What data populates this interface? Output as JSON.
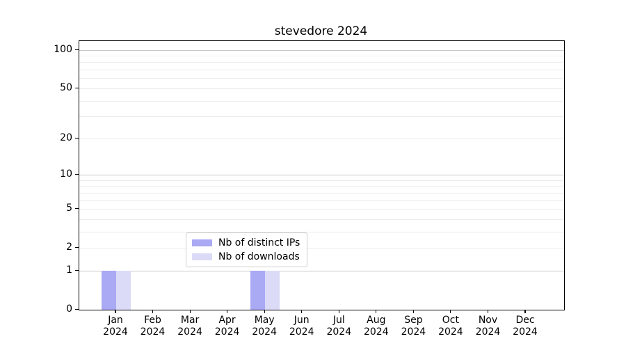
{
  "figure": {
    "background": "#ffffff"
  },
  "chart_data": {
    "type": "bar",
    "title": "stevedore 2024",
    "categories": [
      "Jan",
      "Feb",
      "Mar",
      "Apr",
      "May",
      "Jun",
      "Jul",
      "Aug",
      "Sep",
      "Oct",
      "Nov",
      "Dec"
    ],
    "xtick_year_label": "2024",
    "series": [
      {
        "name": "Nb of distinct IPs",
        "color": "#a9a9f4",
        "values": [
          1,
          0,
          0,
          0,
          1,
          0,
          0,
          0,
          0,
          0,
          0,
          0
        ]
      },
      {
        "name": "Nb of downloads",
        "color": "#dbdbf8",
        "values": [
          1,
          0,
          0,
          0,
          1,
          0,
          0,
          0,
          0,
          0,
          0,
          0
        ]
      }
    ],
    "yscale": "log1p",
    "ylim": [
      0,
      117
    ],
    "yticks_labeled": [
      0,
      1,
      2,
      5,
      10,
      20,
      50,
      100
    ],
    "ygrid_major": [
      1,
      10,
      100
    ],
    "ygrid_minor": [
      2,
      3,
      4,
      5,
      6,
      7,
      8,
      9,
      20,
      30,
      40,
      50,
      60,
      70,
      80,
      90
    ],
    "legend_position": "lower center-left, overlapping plot",
    "grid": true
  },
  "colors": {
    "grid_major": "#c8c8c8",
    "grid_minor": "#ebebeb",
    "spine": "#000000",
    "legend_border": "#cccccc"
  }
}
